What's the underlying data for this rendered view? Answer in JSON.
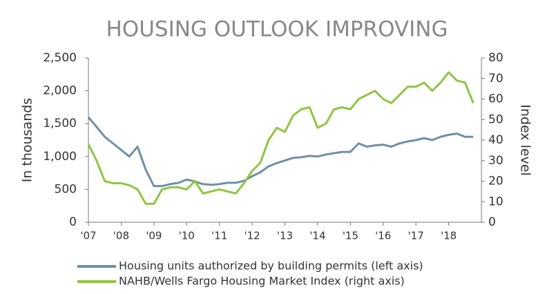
{
  "chart_data": {
    "type": "line",
    "title": "HOUSING OUTLOOK IMPROVING",
    "ylabel": "In thousands",
    "y2label": "Index level",
    "categories": [
      "'07",
      null,
      null,
      null,
      "'08",
      null,
      null,
      null,
      "'09",
      null,
      null,
      null,
      "'10",
      null,
      null,
      null,
      "'11",
      null,
      null,
      null,
      "'12",
      null,
      null,
      null,
      "'13",
      null,
      null,
      null,
      "'14",
      null,
      null,
      null,
      "'15",
      null,
      null,
      null,
      "'16",
      null,
      null,
      null,
      "'17",
      null,
      null,
      null,
      "'18",
      null,
      null,
      null
    ],
    "series": [
      {
        "name": "Housing units authorized by building permits (left axis)",
        "color": "#6d8fa6",
        "values": [
          1600,
          1450,
          1300,
          1200,
          1100,
          1000,
          1150,
          800,
          550,
          550,
          580,
          600,
          650,
          620,
          580,
          570,
          580,
          600,
          600,
          630,
          700,
          760,
          850,
          900,
          940,
          980,
          990,
          1010,
          1000,
          1030,
          1050,
          1070,
          1070,
          1200,
          1150,
          1170,
          1180,
          1150,
          1200,
          1230,
          1250,
          1280,
          1250,
          1300,
          1330,
          1350,
          1300,
          1300
        ]
      },
      {
        "name": "NAHB/Wells Fargo Housing Market Index (right axis)",
        "color": "#8dc63f",
        "axis": "y2",
        "values": [
          38,
          30,
          20,
          19,
          19,
          18,
          16,
          9,
          9,
          16,
          17,
          17,
          16,
          20,
          14,
          15,
          16,
          15,
          14,
          19,
          25,
          29,
          40,
          46,
          44,
          52,
          55,
          56,
          46,
          48,
          55,
          56,
          55,
          60,
          62,
          64,
          60,
          58,
          62,
          66,
          66,
          68,
          64,
          68,
          73,
          69,
          68,
          58
        ]
      }
    ],
    "ylim": [
      0,
      2500
    ],
    "yticks": [
      0,
      500,
      {
        "value": 1000,
        "label": "1,000"
      },
      {
        "value": 1500,
        "label": "1,500"
      },
      {
        "value": 2000,
        "label": "2,000"
      },
      {
        "value": 2500,
        "label": "2,500"
      }
    ],
    "y2lim": [
      0,
      80
    ],
    "y2ticks": [
      0,
      10,
      20,
      30,
      40,
      50,
      60,
      70,
      80
    ]
  }
}
